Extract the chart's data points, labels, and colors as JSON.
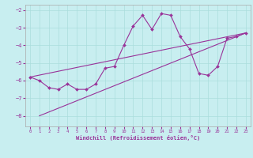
{
  "xlabel": "Windchill (Refroidissement éolien,°C)",
  "bg_color": "#c8eef0",
  "line_color": "#993399",
  "grid_color": "#aadddd",
  "spine_color": "#aaaaaa",
  "xlim": [
    -0.5,
    23.5
  ],
  "ylim": [
    -8.6,
    -1.7
  ],
  "yticks": [
    -8,
    -7,
    -6,
    -5,
    -4,
    -3,
    -2
  ],
  "xticks": [
    0,
    1,
    2,
    3,
    4,
    5,
    6,
    7,
    8,
    9,
    10,
    11,
    12,
    13,
    14,
    15,
    16,
    17,
    18,
    19,
    20,
    21,
    22,
    23
  ],
  "series1_x": [
    0,
    1,
    2,
    3,
    4,
    5,
    6,
    7,
    8,
    9,
    10,
    11,
    12,
    13,
    14,
    15,
    16,
    17,
    18,
    19,
    20,
    21,
    22,
    23
  ],
  "series1_y": [
    -5.8,
    -6.0,
    -6.4,
    -6.5,
    -6.2,
    -6.5,
    -6.5,
    -6.2,
    -5.3,
    -5.2,
    -4.0,
    -2.9,
    -2.3,
    -3.1,
    -2.2,
    -2.3,
    -3.5,
    -4.2,
    -5.6,
    -5.7,
    -5.2,
    -3.6,
    -3.5,
    -3.3
  ],
  "series2_x": [
    1,
    23
  ],
  "series2_y": [
    -8.0,
    -3.3
  ],
  "series3_x": [
    0,
    23
  ],
  "series3_y": [
    -5.8,
    -3.3
  ]
}
